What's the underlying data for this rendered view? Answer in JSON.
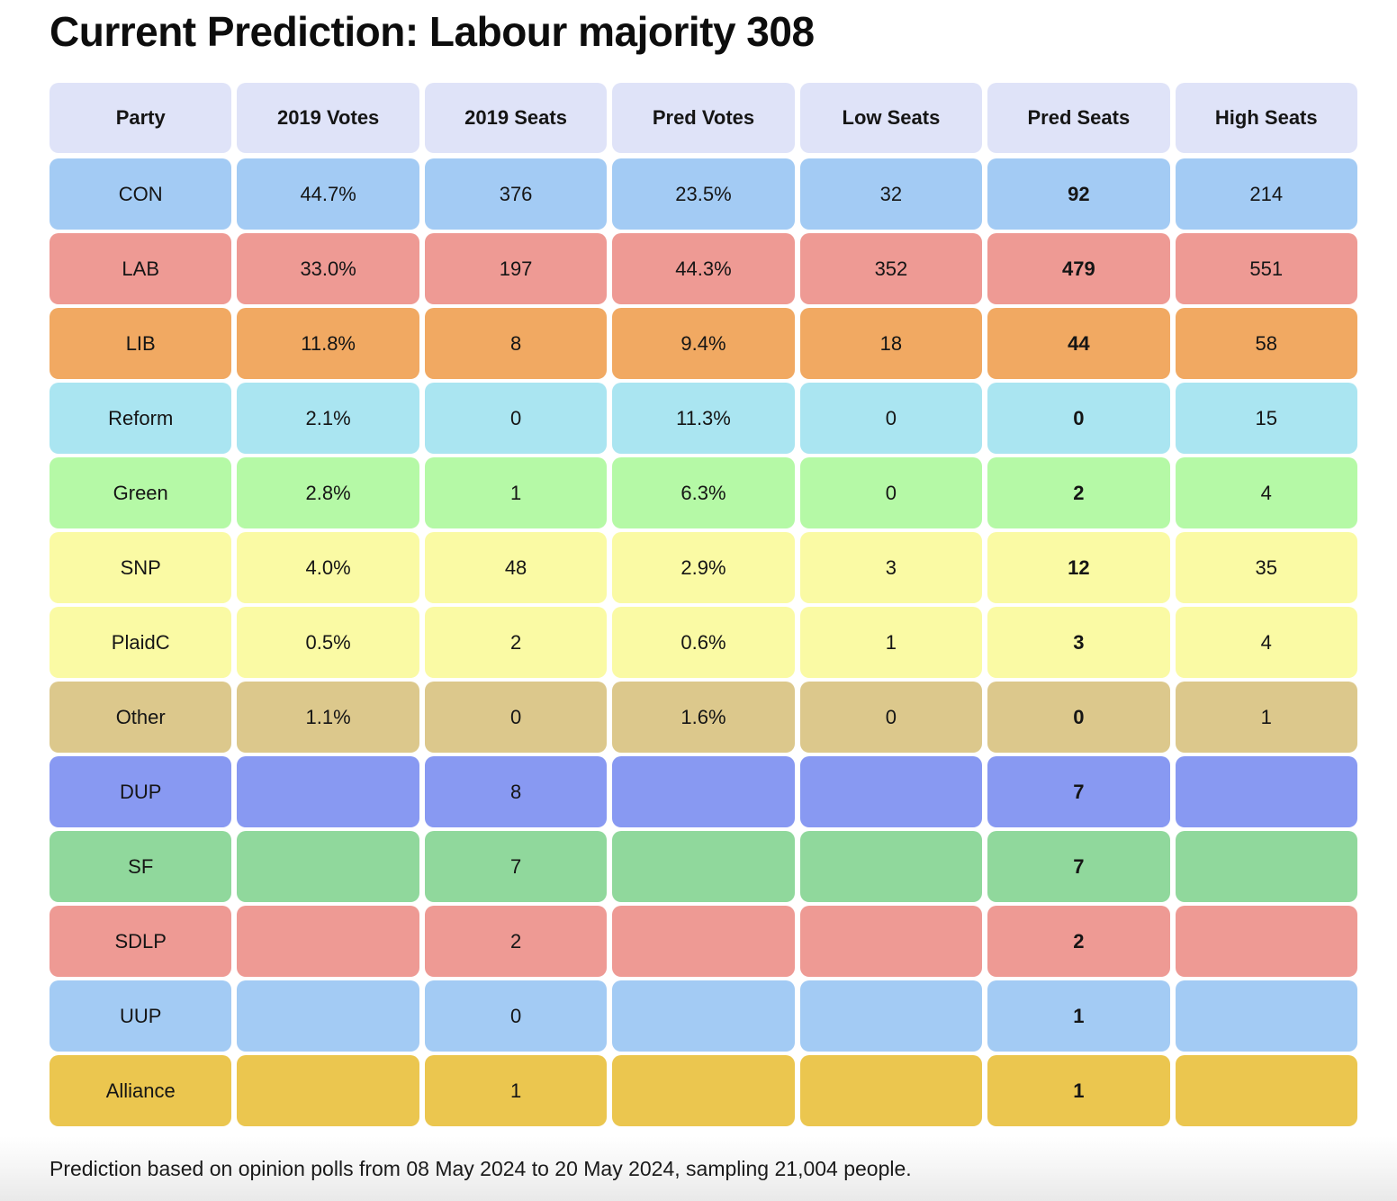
{
  "title": "Current Prediction: Labour majority 308",
  "footer": "Prediction based on opinion polls from 08 May 2024 to 20 May 2024, sampling 21,004 people.",
  "colors": {
    "header_bg": "#dfe3f8",
    "con_blue": "#a3cbf4",
    "lab_red": "#ee9a94",
    "lib_orange": "#f1a962",
    "reform_cyan": "#aae5f1",
    "green_green": "#b5f9a6",
    "snp_yellow": "#fafaa4",
    "other_tan": "#dcc88c",
    "dup_periwinkle": "#8899f2",
    "sf_green": "#90d89c",
    "alliance_gold": "#ebc64f"
  },
  "chart_data": {
    "type": "table",
    "title": "Current Prediction: Labour majority 308",
    "columns": [
      "Party",
      "2019 Votes",
      "2019 Seats",
      "Pred Votes",
      "Low Seats",
      "Pred Seats",
      "High Seats"
    ],
    "rows": [
      {
        "party": "CON",
        "color": "#a3cbf4",
        "cells": [
          "CON",
          "44.7%",
          "376",
          "23.5%",
          "32",
          "92",
          "214"
        ]
      },
      {
        "party": "LAB",
        "color": "#ee9a94",
        "cells": [
          "LAB",
          "33.0%",
          "197",
          "44.3%",
          "352",
          "479",
          "551"
        ]
      },
      {
        "party": "LIB",
        "color": "#f1a962",
        "cells": [
          "LIB",
          "11.8%",
          "8",
          "9.4%",
          "18",
          "44",
          "58"
        ]
      },
      {
        "party": "Reform",
        "color": "#aae5f1",
        "cells": [
          "Reform",
          "2.1%",
          "0",
          "11.3%",
          "0",
          "0",
          "15"
        ]
      },
      {
        "party": "Green",
        "color": "#b5f9a6",
        "cells": [
          "Green",
          "2.8%",
          "1",
          "6.3%",
          "0",
          "2",
          "4"
        ]
      },
      {
        "party": "SNP",
        "color": "#fafaa4",
        "cells": [
          "SNP",
          "4.0%",
          "48",
          "2.9%",
          "3",
          "12",
          "35"
        ]
      },
      {
        "party": "PlaidC",
        "color": "#fafaa4",
        "cells": [
          "PlaidC",
          "0.5%",
          "2",
          "0.6%",
          "1",
          "3",
          "4"
        ]
      },
      {
        "party": "Other",
        "color": "#dcc88c",
        "cells": [
          "Other",
          "1.1%",
          "0",
          "1.6%",
          "0",
          "0",
          "1"
        ]
      },
      {
        "party": "DUP",
        "color": "#8899f2",
        "cells": [
          "DUP",
          "",
          "8",
          "",
          "",
          "7",
          ""
        ]
      },
      {
        "party": "SF",
        "color": "#90d89c",
        "cells": [
          "SF",
          "",
          "7",
          "",
          "",
          "7",
          ""
        ]
      },
      {
        "party": "SDLP",
        "color": "#ee9a94",
        "cells": [
          "SDLP",
          "",
          "2",
          "",
          "",
          "2",
          ""
        ]
      },
      {
        "party": "UUP",
        "color": "#a3cbf4",
        "cells": [
          "UUP",
          "",
          "0",
          "",
          "",
          "1",
          ""
        ]
      },
      {
        "party": "Alliance",
        "color": "#ebc64f",
        "cells": [
          "Alliance",
          "",
          "1",
          "",
          "",
          "1",
          ""
        ]
      }
    ]
  }
}
